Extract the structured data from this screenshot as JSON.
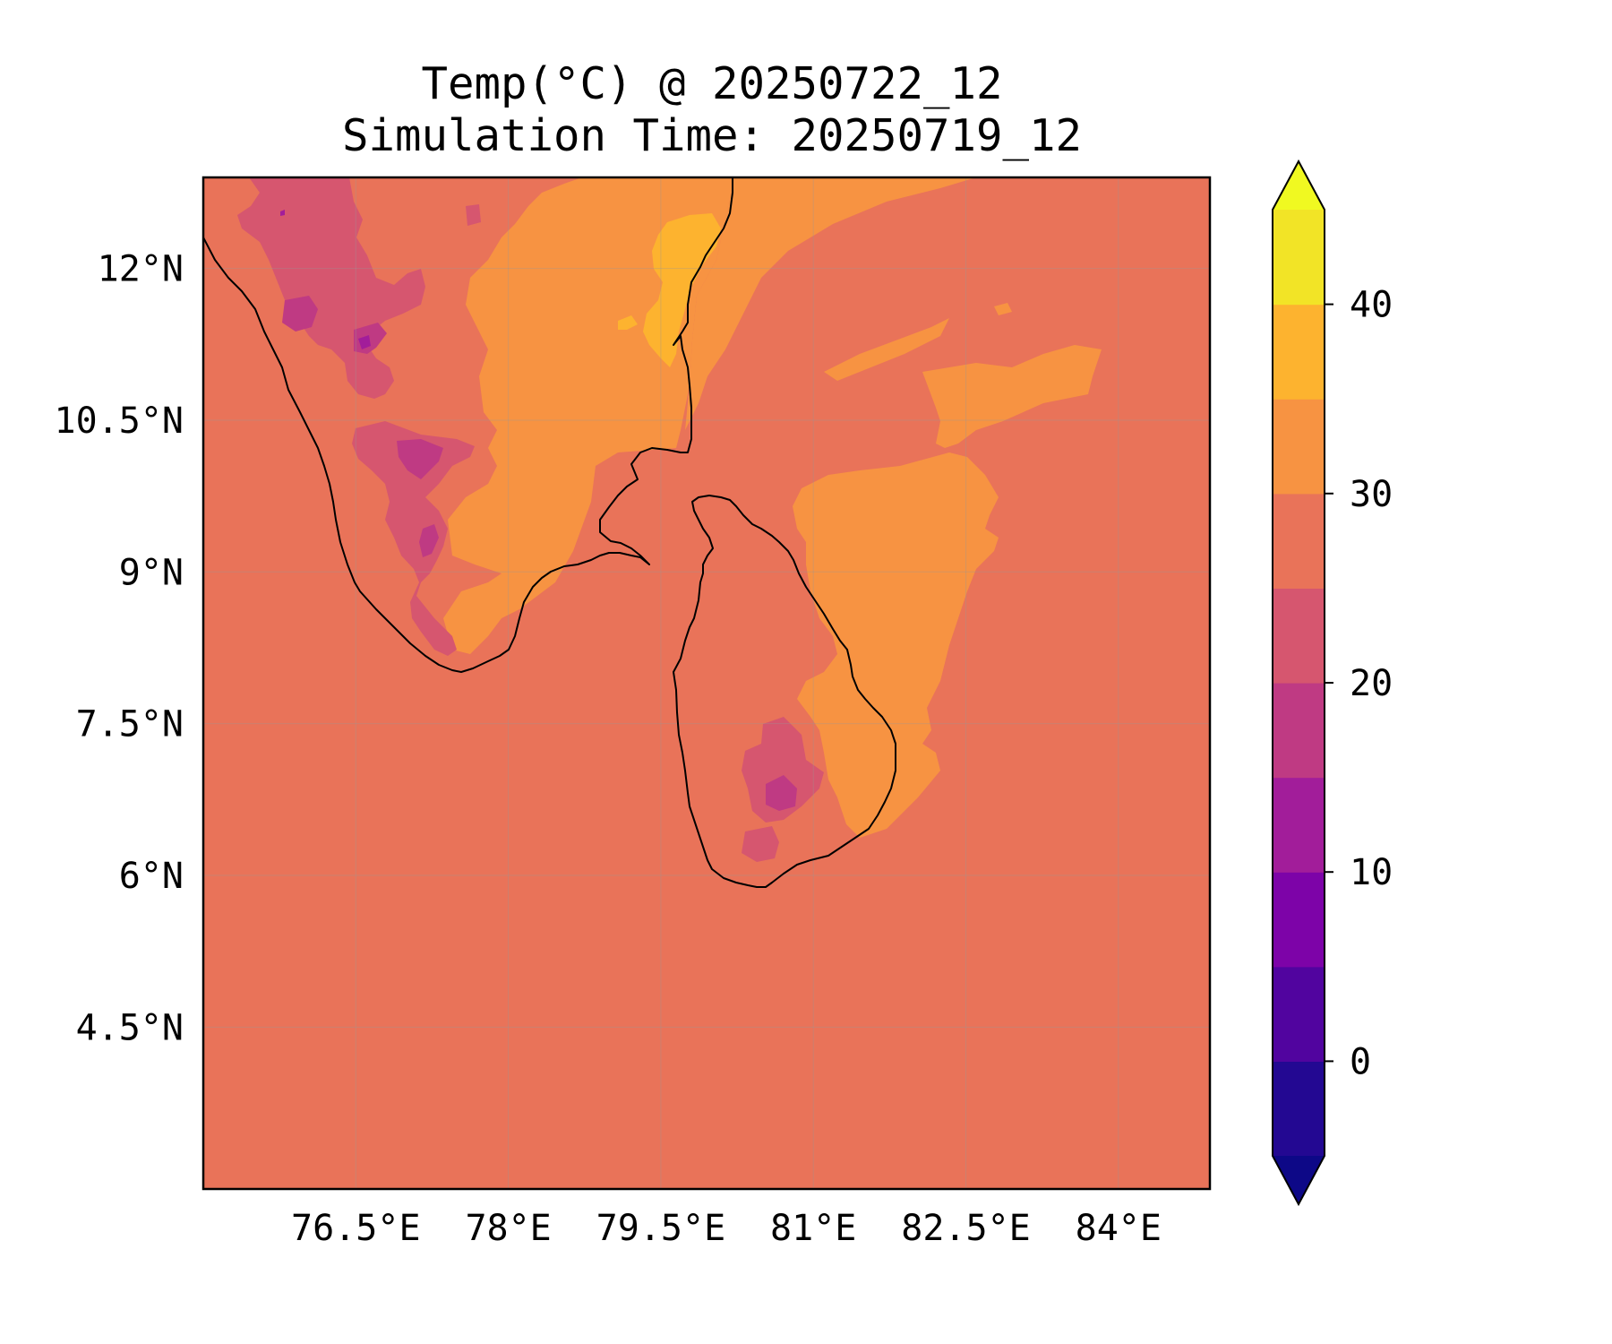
{
  "map": {
    "title": "Temp(°C) @ 20250722_12",
    "subtitle": "Simulation Time: 20250719_12",
    "lon_range": [
      75.0,
      84.9
    ],
    "lat_range": [
      2.9,
      12.9
    ],
    "lon_ticks": [
      76.5,
      78.0,
      79.5,
      81.0,
      82.5,
      84.0
    ],
    "lon_tick_labels": [
      "76.5°E",
      "78°E",
      "79.5°E",
      "81°E",
      "82.5°E",
      "84°E"
    ],
    "lat_ticks": [
      12.0,
      10.5,
      9.0,
      7.5,
      6.0,
      4.5
    ],
    "lat_tick_labels": [
      "12°N",
      "10.5°N",
      "9°N",
      "7.5°N",
      "6°N",
      "4.5°N"
    ],
    "grid": true,
    "background_level_color": "#e97359",
    "regions": [
      {
        "name": "India",
        "kind": "land"
      },
      {
        "name": "Sri Lanka",
        "kind": "land"
      }
    ]
  },
  "colorbar": {
    "levels": [
      -5,
      0,
      5,
      10,
      15,
      20,
      25,
      30,
      35,
      40,
      45
    ],
    "tick_values": [
      0,
      10,
      20,
      30,
      40
    ],
    "tick_labels": [
      "0",
      "10",
      "20",
      "30",
      "40"
    ],
    "colors": [
      "#230892",
      "#51049f",
      "#7d03a8",
      "#a21d9a",
      "#bf3a83",
      "#d6566f",
      "#e97359",
      "#f79342",
      "#fdb32f",
      "#f2e426"
    ],
    "under_color": "#0d0887",
    "over_color": "#f0f921",
    "extend": "both"
  }
}
